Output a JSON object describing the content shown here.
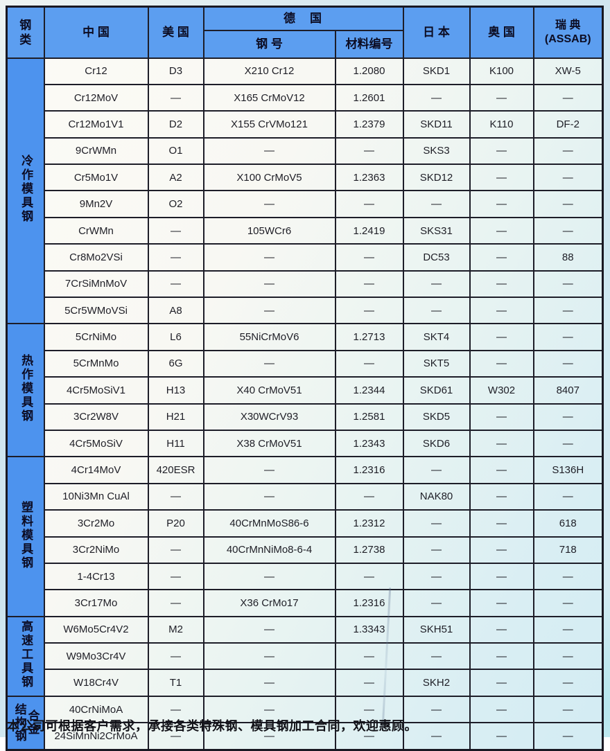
{
  "page": {
    "footer": "本公司可根据客户需求，承接各类特殊钢、模具钢加工合同，欢迎惠顾。"
  },
  "colors": {
    "header_blue": "#5c9ef0",
    "category_blue": "#4d93ee",
    "grid_border": "#1d1d28",
    "body_tint": "#d6edf3",
    "page_bg": "#cfe6f0"
  },
  "table": {
    "header": {
      "steel_class": "钢\n类",
      "china": "中 国",
      "usa": "美 国",
      "germany": "德　国",
      "germany_grade": "钢 号",
      "germany_number": "材料编号",
      "japan": "日 本",
      "austria": "奥 国",
      "sweden": "瑞 典\n(ASSAB)"
    },
    "categories": [
      {
        "label": "冷作模具钢",
        "rows": 10
      },
      {
        "label": "热作模具钢",
        "rows": 5
      },
      {
        "label": "塑料模具钢",
        "rows": 6
      },
      {
        "label": "高速工具钢",
        "rows": 3
      },
      {
        "label": "合金结构钢",
        "parts": [
          "结构钢",
          "合金"
        ],
        "rows": 2
      }
    ],
    "rows": [
      [
        "Cr12",
        "D3",
        "X210 Cr12",
        "1.2080",
        "SKD1",
        "K100",
        "XW-5"
      ],
      [
        "Cr12MoV",
        "—",
        "X165 CrMoV12",
        "1.2601",
        "—",
        "—",
        "—"
      ],
      [
        "Cr12Mo1V1",
        "D2",
        "X155 CrVMo121",
        "1.2379",
        "SKD11",
        "K110",
        "DF-2"
      ],
      [
        "9CrWMn",
        "O1",
        "—",
        "—",
        "SKS3",
        "—",
        "—"
      ],
      [
        "Cr5Mo1V",
        "A2",
        "X100 CrMoV5",
        "1.2363",
        "SKD12",
        "—",
        "—"
      ],
      [
        "9Mn2V",
        "O2",
        "—",
        "—",
        "—",
        "—",
        "—"
      ],
      [
        "CrWMn",
        "—",
        "105WCr6",
        "1.2419",
        "SKS31",
        "—",
        "—"
      ],
      [
        "Cr8Mo2VSi",
        "—",
        "—",
        "—",
        "DC53",
        "—",
        "88"
      ],
      [
        "7CrSiMnMoV",
        "—",
        "—",
        "—",
        "—",
        "—",
        "—"
      ],
      [
        "5Cr5WMoVSi",
        "A8",
        "—",
        "—",
        "—",
        "—",
        "—"
      ],
      [
        "5CrNiMo",
        "L6",
        "55NiCrMoV6",
        "1.2713",
        "SKT4",
        "—",
        "—"
      ],
      [
        "5CrMnMo",
        "6G",
        "—",
        "—",
        "SKT5",
        "—",
        "—"
      ],
      [
        "4Cr5MoSiV1",
        "H13",
        "X40 CrMoV51",
        "1.2344",
        "SKD61",
        "W302",
        "8407"
      ],
      [
        "3Cr2W8V",
        "H21",
        "X30WCrV93",
        "1.2581",
        "SKD5",
        "—",
        "—"
      ],
      [
        "4Cr5MoSiV",
        "H11",
        "X38 CrMoV51",
        "1.2343",
        "SKD6",
        "—",
        "—"
      ],
      [
        "4Cr14MoV",
        "420ESR",
        "—",
        "1.2316",
        "—",
        "—",
        "S136H"
      ],
      [
        "10Ni3Mn CuAl",
        "—",
        "—",
        "—",
        "NAK80",
        "—",
        "—"
      ],
      [
        "3Cr2Mo",
        "P20",
        "40CrMnMoS86-6",
        "1.2312",
        "—",
        "—",
        "618"
      ],
      [
        "3Cr2NiMo",
        "—",
        "40CrMnNiMo8-6-4",
        "1.2738",
        "—",
        "—",
        "718"
      ],
      [
        "1-4Cr13",
        "—",
        "—",
        "—",
        "—",
        "—",
        "—"
      ],
      [
        "3Cr17Mo",
        "—",
        "X36 CrMo17",
        "1.2316",
        "—",
        "—",
        "—"
      ],
      [
        "W6Mo5Cr4V2",
        "M2",
        "—",
        "1.3343",
        "SKH51",
        "—",
        "—"
      ],
      [
        "W9Mo3Cr4V",
        "—",
        "—",
        "—",
        "—",
        "—",
        "—"
      ],
      [
        "W18Cr4V",
        "T1",
        "—",
        "—",
        "SKH2",
        "—",
        "—"
      ],
      [
        "40CrNiMoA",
        "—",
        "—",
        "—",
        "—",
        "—",
        "—"
      ],
      [
        "24SiMnNi2CrMoA",
        "—",
        "—",
        "—",
        "—",
        "—",
        "—"
      ]
    ]
  }
}
